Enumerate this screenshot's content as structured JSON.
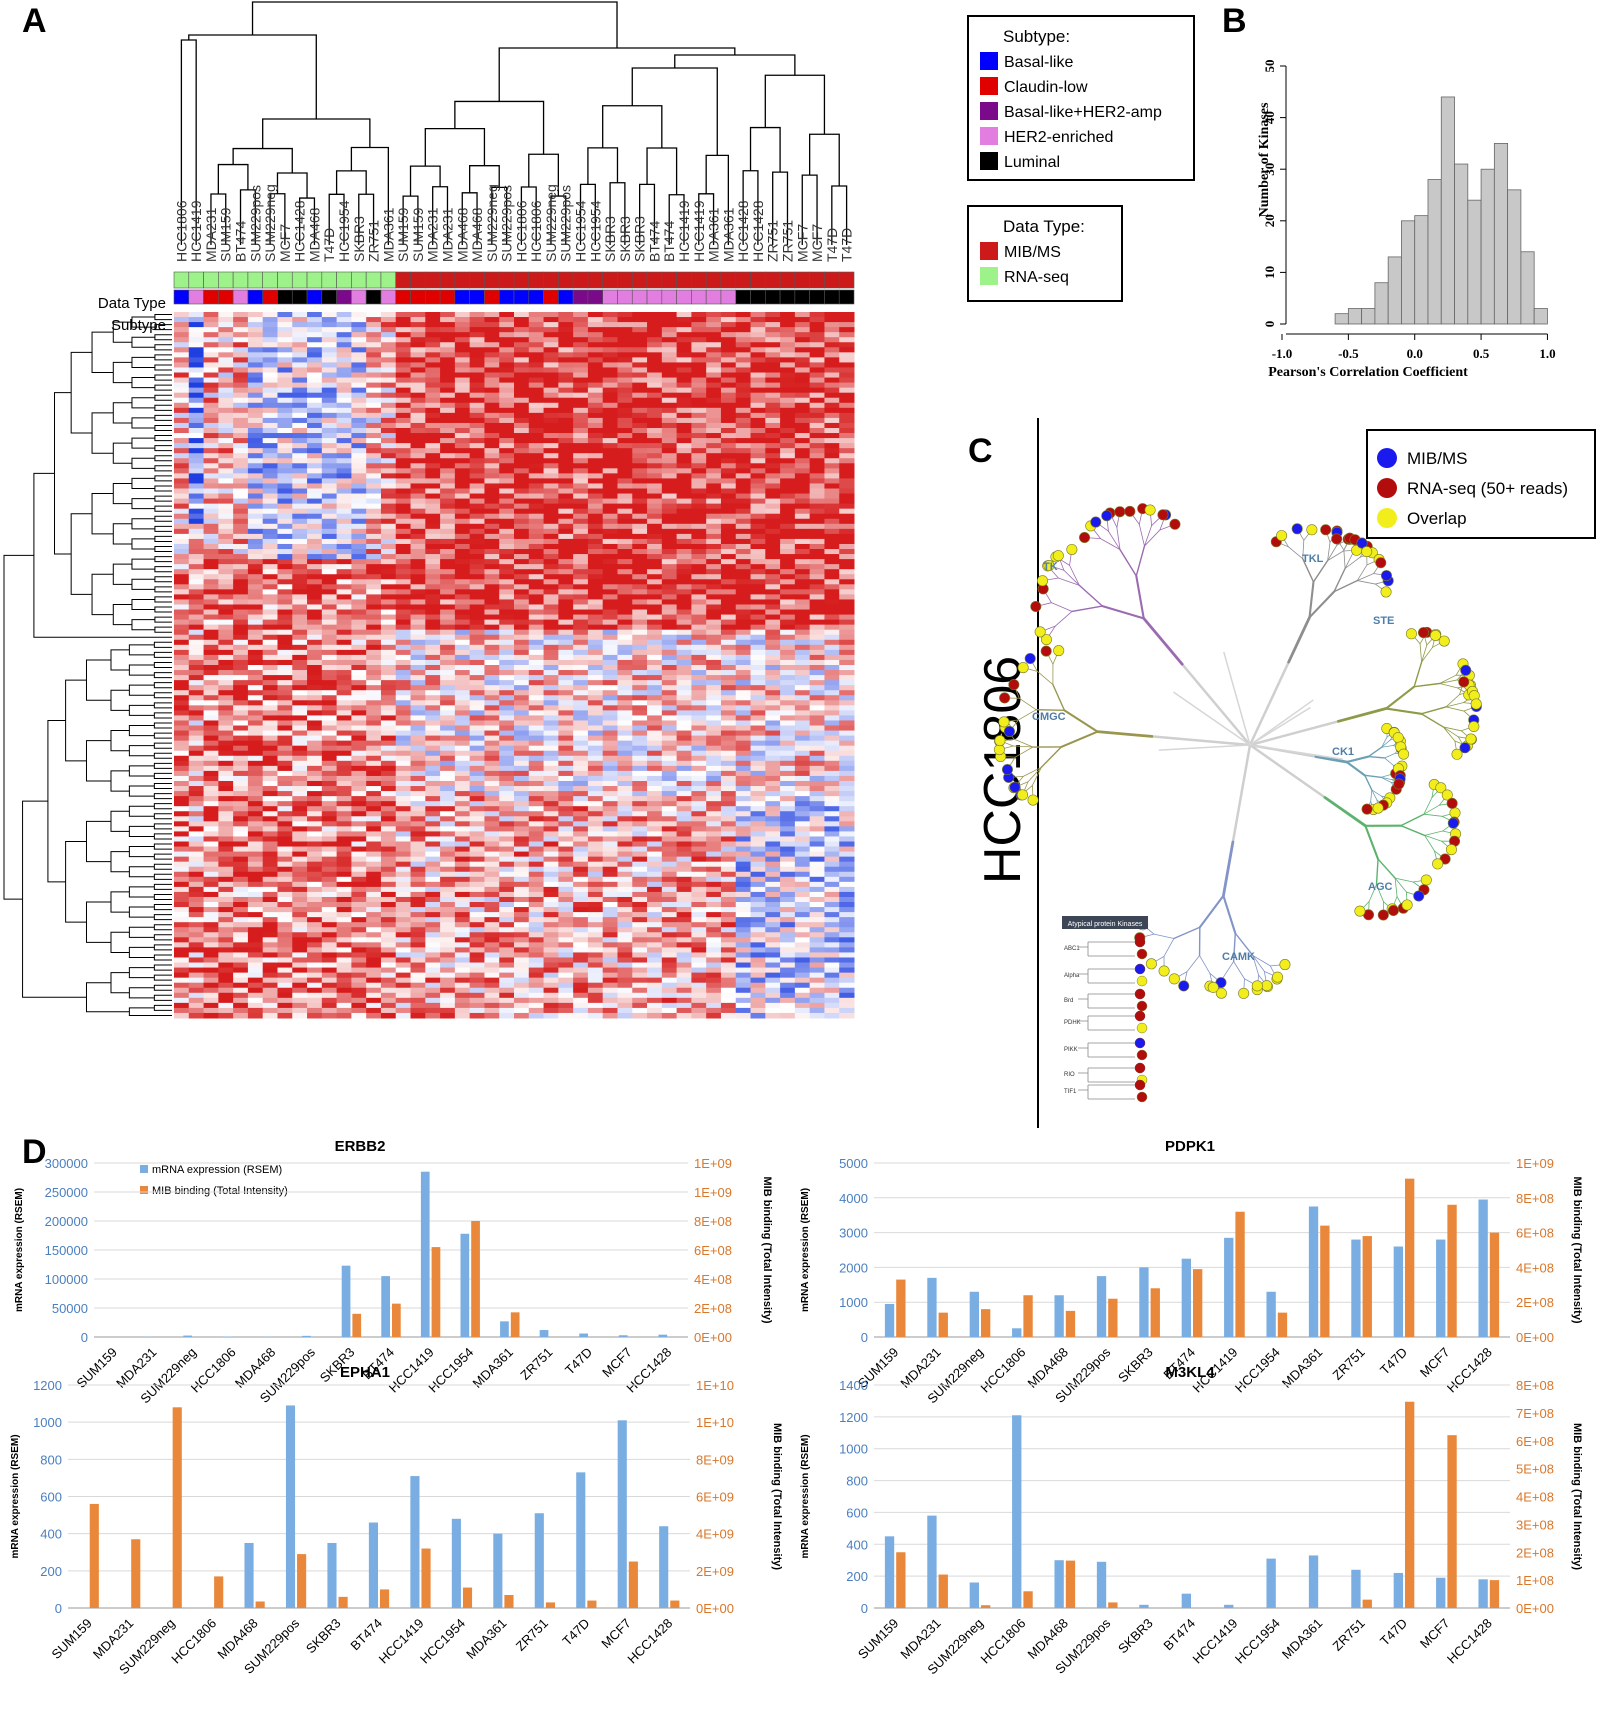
{
  "panels": {
    "a": "A",
    "b": "B",
    "c": "C",
    "d": "D"
  },
  "heatmap": {
    "row_labels": {
      "data_type": "Data Type",
      "subtype": "Subtype"
    },
    "columns": [
      {
        "name": "HCC1806",
        "dt": "rna",
        "st": "basal"
      },
      {
        "name": "HCC1419",
        "dt": "rna",
        "st": "her2"
      },
      {
        "name": "MDA231",
        "dt": "rna",
        "st": "claudin"
      },
      {
        "name": "SUM159",
        "dt": "rna",
        "st": "claudin"
      },
      {
        "name": "BT474",
        "dt": "rna",
        "st": "her2"
      },
      {
        "name": "SUM229pos",
        "dt": "rna",
        "st": "basal"
      },
      {
        "name": "SUM229neg",
        "dt": "rna",
        "st": "claudin"
      },
      {
        "name": "MCF7",
        "dt": "rna",
        "st": "luminal"
      },
      {
        "name": "HCC1428",
        "dt": "rna",
        "st": "luminal"
      },
      {
        "name": "MDA468",
        "dt": "rna",
        "st": "basal"
      },
      {
        "name": "T47D",
        "dt": "rna",
        "st": "luminal"
      },
      {
        "name": "HCC1954",
        "dt": "rna",
        "st": "basher2"
      },
      {
        "name": "SKBR3",
        "dt": "rna",
        "st": "her2"
      },
      {
        "name": "ZR751",
        "dt": "rna",
        "st": "luminal"
      },
      {
        "name": "MDA361",
        "dt": "rna",
        "st": "her2"
      },
      {
        "name": "SUM159",
        "dt": "mib",
        "st": "claudin"
      },
      {
        "name": "SUM159",
        "dt": "mib",
        "st": "claudin"
      },
      {
        "name": "MDA231",
        "dt": "mib",
        "st": "claudin"
      },
      {
        "name": "MDA231",
        "dt": "mib",
        "st": "claudin"
      },
      {
        "name": "MDA468",
        "dt": "mib",
        "st": "basal"
      },
      {
        "name": "MDA468",
        "dt": "mib",
        "st": "basal"
      },
      {
        "name": "SUM229neg",
        "dt": "mib",
        "st": "claudin"
      },
      {
        "name": "SUM229pos",
        "dt": "mib",
        "st": "basal"
      },
      {
        "name": "HCC1806",
        "dt": "mib",
        "st": "basal"
      },
      {
        "name": "HCC1806",
        "dt": "mib",
        "st": "basal"
      },
      {
        "name": "SUM229neg",
        "dt": "mib",
        "st": "claudin"
      },
      {
        "name": "SUM229pos",
        "dt": "mib",
        "st": "basal"
      },
      {
        "name": "HCC1954",
        "dt": "mib",
        "st": "basher2"
      },
      {
        "name": "HCC1954",
        "dt": "mib",
        "st": "basher2"
      },
      {
        "name": "SKBR3",
        "dt": "mib",
        "st": "her2"
      },
      {
        "name": "SKBR3",
        "dt": "mib",
        "st": "her2"
      },
      {
        "name": "SKBR3",
        "dt": "mib",
        "st": "her2"
      },
      {
        "name": "BT474",
        "dt": "mib",
        "st": "her2"
      },
      {
        "name": "BT474",
        "dt": "mib",
        "st": "her2"
      },
      {
        "name": "HCC1419",
        "dt": "mib",
        "st": "her2"
      },
      {
        "name": "HCC1419",
        "dt": "mib",
        "st": "her2"
      },
      {
        "name": "MDA361",
        "dt": "mib",
        "st": "her2"
      },
      {
        "name": "MDA361",
        "dt": "mib",
        "st": "her2"
      },
      {
        "name": "HCC1428",
        "dt": "mib",
        "st": "luminal"
      },
      {
        "name": "HCC1428",
        "dt": "mib",
        "st": "luminal"
      },
      {
        "name": "ZR751",
        "dt": "mib",
        "st": "luminal"
      },
      {
        "name": "ZR751",
        "dt": "mib",
        "st": "luminal"
      },
      {
        "name": "MCF7",
        "dt": "mib",
        "st": "luminal"
      },
      {
        "name": "MCF7",
        "dt": "mib",
        "st": "luminal"
      },
      {
        "name": "T47D",
        "dt": "mib",
        "st": "luminal"
      },
      {
        "name": "T47D",
        "dt": "mib",
        "st": "luminal"
      }
    ],
    "subtype_legend": {
      "title": "Subtype:",
      "items": [
        {
          "label": "Basal-like",
          "color": "#0000ff"
        },
        {
          "label": "Claudin-low",
          "color": "#e00000"
        },
        {
          "label": "Basal-like+HER2-amp",
          "color": "#7a0a8a"
        },
        {
          "label": "HER2-enriched",
          "color": "#e27ee0"
        },
        {
          "label": "Luminal",
          "color": "#000000"
        }
      ]
    },
    "datatype_legend": {
      "title": "Data Type:",
      "items": [
        {
          "label": "MIB/MS",
          "color": "#cc1a1a"
        },
        {
          "label": "RNA-seq",
          "color": "#9ef28a"
        }
      ]
    },
    "colors": {
      "high": "#d61c1c",
      "low": "#1f3fe0",
      "mid": "#ffffff"
    }
  },
  "histogram": {
    "chart_data": {
      "type": "bar",
      "title": "",
      "xlabel": "Pearson's Correlation Coefficient",
      "ylabel": "Number of Kinases",
      "bin_edges": [
        -0.6,
        -0.5,
        -0.4,
        -0.3,
        -0.2,
        -0.1,
        0.0,
        0.1,
        0.2,
        0.3,
        0.4,
        0.5,
        0.6,
        0.7,
        0.8,
        0.9
      ],
      "values": [
        2,
        3,
        3,
        8,
        13,
        20,
        21,
        28,
        44,
        31,
        24,
        30,
        35,
        26,
        14,
        3
      ],
      "xlim": [
        -1.0,
        1.0
      ],
      "ylim": [
        0,
        50
      ],
      "xticks": [
        "-1.0",
        "-0.5",
        "0.0",
        "0.5",
        "1.0"
      ],
      "yticks": [
        "0",
        "10",
        "20",
        "30",
        "40",
        "50"
      ]
    }
  },
  "kinome": {
    "cell_line": "HCC1806",
    "legend": [
      {
        "label": "MIB/MS",
        "color": "#1a1aee"
      },
      {
        "label": "RNA-seq (50+ reads)",
        "color": "#b30c0c"
      },
      {
        "label": "Overlap",
        "color": "#f2ee1c"
      }
    ],
    "groups": [
      "TK",
      "TKL",
      "STE",
      "CK1",
      "AGC",
      "CAMK",
      "CMGC"
    ],
    "atypical": {
      "title": "Atypical protein Kinases",
      "families": [
        "ABC1",
        "Alpha",
        "Brd",
        "PDHK",
        "PIKK",
        "RIO",
        "TIF1"
      ]
    }
  },
  "bars": {
    "legend": {
      "mrna": "mRNA expression (RSEM)",
      "mib": "MIB binding (Total Intensity)"
    },
    "left_axis_label": "mRNA expression (RSEM)",
    "right_axis_label": "MIB binding (Total Intensity)",
    "colors": {
      "mrna": "#7aaee2",
      "mib": "#e9873a"
    },
    "charts": [
      {
        "type": "bar",
        "title": "ERBB2",
        "categories": [
          "SUM159",
          "MDA231",
          "SUM229neg",
          "HCC1806",
          "MDA468",
          "SUM229pos",
          "SKBR3",
          "BT474",
          "HCC1419",
          "HCC1954",
          "MDA361",
          "ZR751",
          "T47D",
          "MCF7",
          "HCC1428"
        ],
        "series": [
          {
            "name": "mRNA expression (RSEM)",
            "axis": "left",
            "values": [
              0,
              500,
              2500,
              800,
              500,
              2000,
              123000,
              105000,
              285000,
              178000,
              27000,
              12000,
              6000,
              3000,
              4000
            ]
          },
          {
            "name": "MIB binding (Total Intensity)",
            "axis": "right",
            "values": [
              0,
              0,
              0,
              0,
              0,
              0,
              160000000,
              230000000,
              620000000,
              800000000,
              170000000,
              0,
              0,
              0,
              0
            ]
          }
        ],
        "left_ticks": [
          "0",
          "50000",
          "100000",
          "150000",
          "200000",
          "250000",
          "300000"
        ],
        "left_max": 300000,
        "right_ticks": [
          "0E+00",
          "2E+08",
          "4E+08",
          "6E+08",
          "8E+08",
          "1E+09",
          "1E+09"
        ],
        "right_max": 1200000000
      },
      {
        "type": "bar",
        "title": "PDPK1",
        "categories": [
          "SUM159",
          "MDA231",
          "SUM229neg",
          "HCC1806",
          "MDA468",
          "SUM229pos",
          "SKBR3",
          "BT474",
          "HCC1419",
          "HCC1954",
          "MDA361",
          "ZR751",
          "T47D",
          "MCF7",
          "HCC1428"
        ],
        "series": [
          {
            "name": "mRNA expression (RSEM)",
            "axis": "left",
            "values": [
              950,
              1700,
              1300,
              250,
              1200,
              1750,
              2000,
              2250,
              2850,
              1300,
              3750,
              2800,
              2600,
              2800,
              3950
            ]
          },
          {
            "name": "MIB binding (Total Intensity)",
            "axis": "right",
            "values": [
              330000000,
              140000000,
              160000000,
              240000000,
              150000000,
              220000000,
              280000000,
              390000000,
              720000000,
              140000000,
              640000000,
              580000000,
              910000000,
              760000000,
              600000000
            ]
          }
        ],
        "left_ticks": [
          "0",
          "1000",
          "2000",
          "3000",
          "4000",
          "5000"
        ],
        "left_max": 5000,
        "right_ticks": [
          "0E+00",
          "2E+08",
          "4E+08",
          "6E+08",
          "8E+08",
          "1E+09"
        ],
        "right_max": 1000000000
      },
      {
        "type": "bar",
        "title": "EPHA1",
        "categories": [
          "SUM159",
          "MDA231",
          "SUM229neg",
          "HCC1806",
          "MDA468",
          "SUM229pos",
          "SKBR3",
          "BT474",
          "HCC1419",
          "HCC1954",
          "MDA361",
          "ZR751",
          "T47D",
          "MCF7",
          "HCC1428"
        ],
        "series": [
          {
            "name": "mRNA expression (RSEM)",
            "axis": "left",
            "values": [
              0,
              0,
              0,
              0,
              350,
              1090,
              350,
              460,
              710,
              480,
              400,
              510,
              730,
              1010,
              440
            ]
          },
          {
            "name": "MIB binding (Total Intensity)",
            "axis": "right",
            "values": [
              5600000000,
              3700000000,
              10800000000,
              1700000000,
              350000000,
              2900000000,
              600000000,
              1000000000,
              3200000000,
              1100000000,
              700000000,
              300000000,
              400000000,
              2500000000,
              400000000
            ]
          }
        ],
        "left_ticks": [
          "0",
          "200",
          "400",
          "600",
          "800",
          "1000",
          "1200"
        ],
        "left_max": 1200,
        "right_ticks": [
          "0E+00",
          "2E+09",
          "4E+09",
          "6E+09",
          "8E+09",
          "1E+10",
          "1E+10"
        ],
        "right_max": 12000000000
      },
      {
        "type": "bar",
        "title": "M3KL4",
        "categories": [
          "SUM159",
          "MDA231",
          "SUM229neg",
          "HCC1806",
          "MDA468",
          "SUM229pos",
          "SKBR3",
          "BT474",
          "HCC1419",
          "HCC1954",
          "MDA361",
          "ZR751",
          "T47D",
          "MCF7",
          "HCC1428"
        ],
        "series": [
          {
            "name": "mRNA expression (RSEM)",
            "axis": "left",
            "values": [
              450,
              580,
              160,
              1210,
              300,
              290,
              20,
              90,
              20,
              310,
              330,
              240,
              220,
              190,
              180
            ]
          },
          {
            "name": "MIB binding (Total Intensity)",
            "axis": "right",
            "values": [
              200000000,
              120000000,
              10000000,
              60000000,
              170000000,
              20000000,
              0,
              0,
              0,
              0,
              0,
              30000000,
              740000000,
              620000000,
              100000000
            ]
          }
        ],
        "left_ticks": [
          "0",
          "200",
          "400",
          "600",
          "800",
          "1000",
          "1200",
          "1400"
        ],
        "left_max": 1400,
        "right_ticks": [
          "0E+00",
          "1E+08",
          "2E+08",
          "3E+08",
          "4E+08",
          "5E+08",
          "6E+08",
          "7E+08",
          "8E+08"
        ],
        "right_max": 800000000
      }
    ]
  }
}
